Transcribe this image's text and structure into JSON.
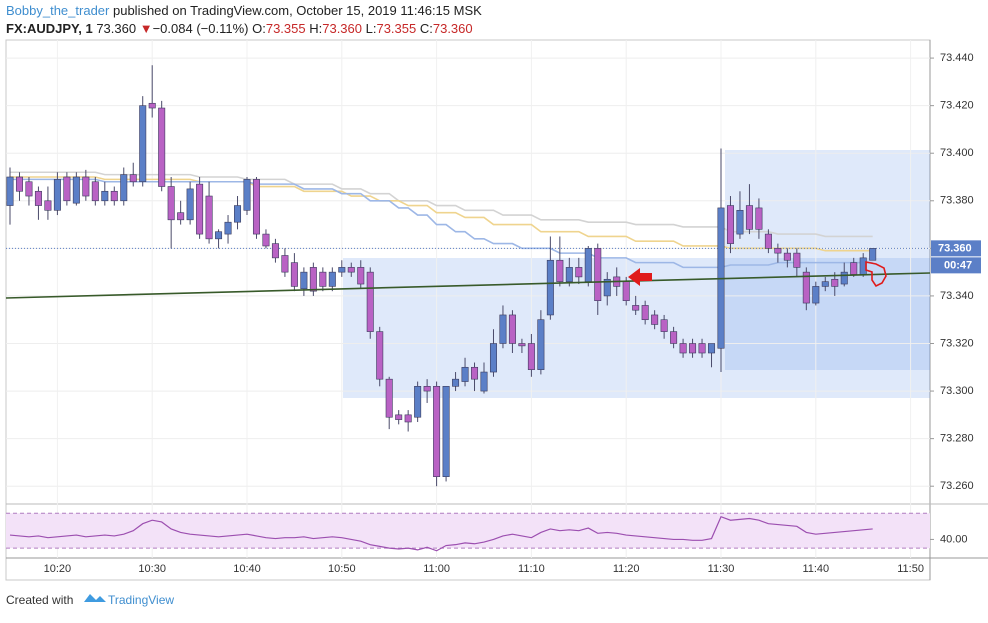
{
  "header": {
    "author": "Bobby_the_trader",
    "published": "published on TradingView.com, October 15, 2019 11:46:15 MSK",
    "symbol": "FX:AUDJPY, 1",
    "price": "73.360",
    "arrow": "▼",
    "change": "−0.084 (−0.11%)",
    "ohlc": [
      {
        "key": "O:",
        "value": "73.355"
      },
      {
        "key": "H:",
        "value": "73.360"
      },
      {
        "key": "L:",
        "value": "73.355"
      },
      {
        "key": "C:",
        "value": "73.360"
      }
    ]
  },
  "chart_data": [
    {
      "type": "candlestick",
      "up_color": "#5b7fc7",
      "down_color": "#b962c4",
      "wick_color": "#4a4a6a",
      "categories": [
        null,
        null,
        null,
        null,
        null,
        "10:20",
        null,
        null,
        null,
        null,
        null,
        null,
        null,
        null,
        null,
        "10:30",
        null,
        null,
        null,
        null,
        null,
        null,
        null,
        null,
        null,
        "10:40",
        null,
        null,
        null,
        null,
        null,
        null,
        null,
        null,
        null,
        "10:50",
        null,
        null,
        null,
        null,
        null,
        null,
        null,
        null,
        null,
        "11:00",
        null,
        null,
        null,
        null,
        null,
        null,
        null,
        null,
        null,
        "11:10",
        null,
        null,
        null,
        null,
        null,
        null,
        null,
        null,
        null,
        "11:20",
        null,
        null,
        null,
        null,
        null,
        null,
        null,
        null,
        null,
        "11:30",
        null,
        null,
        null,
        null,
        null,
        null,
        null,
        null,
        null,
        "11:40",
        null,
        null,
        null,
        null,
        null,
        null,
        null,
        null,
        null,
        "11:50"
      ],
      "open": [
        73.378,
        73.39,
        73.388,
        73.384,
        73.38,
        73.376,
        73.39,
        73.379,
        73.39,
        73.388,
        73.38,
        73.384,
        73.38,
        73.391,
        73.388,
        73.421,
        73.419,
        73.386,
        73.375,
        73.372,
        73.387,
        73.382,
        73.364,
        73.366,
        73.371,
        73.376,
        73.389,
        73.366,
        73.362,
        73.357,
        73.354,
        73.343,
        73.352,
        73.35,
        73.344,
        73.35,
        73.352,
        73.352,
        73.35,
        73.325,
        73.305,
        73.29,
        73.29,
        73.289,
        73.302,
        73.302,
        73.264,
        73.302,
        73.304,
        73.31,
        73.3,
        73.308,
        73.32,
        73.332,
        73.32,
        73.32,
        73.309,
        73.332,
        73.355,
        73.346,
        73.352,
        73.346,
        73.36,
        73.34,
        73.348,
        73.346,
        73.336,
        73.336,
        73.332,
        73.33,
        73.325,
        73.32,
        73.32,
        73.32,
        73.316,
        73.318,
        73.378,
        73.366,
        73.378,
        73.377,
        73.366,
        73.36,
        73.358,
        73.358,
        73.35,
        73.337,
        73.344,
        73.347,
        73.345,
        73.354,
        73.349,
        73.355,
        null,
        null,
        null,
        null
      ],
      "high": [
        73.394,
        73.392,
        73.39,
        73.386,
        73.386,
        73.392,
        73.392,
        73.392,
        73.393,
        73.39,
        73.388,
        73.386,
        73.394,
        73.396,
        73.424,
        73.437,
        73.422,
        73.39,
        73.38,
        73.388,
        73.39,
        73.388,
        73.368,
        73.374,
        73.382,
        73.39,
        73.39,
        73.368,
        73.364,
        73.36,
        73.358,
        73.352,
        73.354,
        73.352,
        73.352,
        73.355,
        73.354,
        73.355,
        73.352,
        73.327,
        73.306,
        73.292,
        73.292,
        73.304,
        73.305,
        73.304,
        73.302,
        73.308,
        73.314,
        73.312,
        73.312,
        73.326,
        73.336,
        73.334,
        73.322,
        73.324,
        73.334,
        73.365,
        73.365,
        73.356,
        73.356,
        73.361,
        73.362,
        73.35,
        73.352,
        73.348,
        73.34,
        73.338,
        73.334,
        73.332,
        73.327,
        73.322,
        73.322,
        73.322,
        73.32,
        73.402,
        73.382,
        73.384,
        73.387,
        73.381,
        73.368,
        73.362,
        73.36,
        73.36,
        73.352,
        73.346,
        73.348,
        73.35,
        73.354,
        73.356,
        73.358,
        73.36,
        null,
        null,
        null,
        null
      ],
      "low": [
        73.37,
        73.38,
        73.378,
        73.372,
        73.372,
        73.374,
        73.378,
        73.378,
        73.38,
        73.378,
        73.378,
        73.378,
        73.378,
        73.386,
        73.386,
        73.415,
        73.384,
        73.36,
        73.37,
        73.37,
        73.364,
        73.362,
        73.36,
        73.362,
        73.368,
        73.374,
        73.364,
        73.36,
        73.354,
        73.348,
        73.342,
        73.34,
        73.34,
        73.342,
        73.342,
        73.348,
        73.348,
        73.343,
        73.322,
        73.302,
        73.284,
        73.286,
        73.283,
        73.287,
        73.295,
        73.26,
        73.262,
        73.3,
        73.302,
        73.3,
        73.299,
        73.306,
        73.318,
        73.316,
        73.316,
        73.306,
        73.307,
        73.33,
        73.344,
        73.344,
        73.345,
        73.344,
        73.332,
        73.336,
        73.34,
        73.336,
        73.332,
        73.328,
        73.326,
        73.322,
        73.318,
        73.314,
        73.314,
        73.314,
        73.31,
        73.308,
        73.358,
        73.364,
        73.366,
        73.364,
        73.358,
        73.354,
        73.352,
        73.348,
        73.334,
        73.336,
        73.342,
        73.34,
        73.344,
        73.348,
        73.348,
        73.355,
        null,
        null,
        null,
        null
      ],
      "close": [
        73.39,
        73.384,
        73.382,
        73.378,
        73.376,
        73.389,
        73.38,
        73.39,
        73.382,
        73.38,
        73.384,
        73.38,
        73.391,
        73.388,
        73.42,
        73.419,
        73.386,
        73.372,
        73.372,
        73.385,
        73.366,
        73.364,
        73.367,
        73.371,
        73.378,
        73.389,
        73.366,
        73.361,
        73.356,
        73.35,
        73.344,
        73.35,
        73.342,
        73.344,
        73.35,
        73.352,
        73.35,
        73.345,
        73.325,
        73.305,
        73.289,
        73.288,
        73.287,
        73.302,
        73.3,
        73.264,
        73.302,
        73.305,
        73.31,
        73.305,
        73.308,
        73.32,
        73.332,
        73.32,
        73.319,
        73.309,
        73.33,
        73.355,
        73.346,
        73.352,
        73.348,
        73.36,
        73.338,
        73.347,
        73.344,
        73.338,
        73.334,
        73.33,
        73.328,
        73.325,
        73.32,
        73.316,
        73.316,
        73.316,
        73.32,
        73.377,
        73.362,
        73.376,
        73.368,
        73.368,
        73.36,
        73.358,
        73.355,
        73.352,
        73.337,
        73.344,
        73.346,
        73.344,
        73.35,
        73.349,
        73.356,
        73.36,
        null,
        null,
        null,
        null
      ],
      "series": [
        {
          "color": "#d3d3d3",
          "values": [
            73.392,
            73.392,
            73.392,
            73.392,
            73.392,
            73.392,
            73.392,
            73.392,
            73.392,
            73.392,
            73.391,
            73.391,
            73.391,
            73.391,
            73.391,
            73.391,
            73.391,
            73.391,
            73.391,
            73.391,
            73.39,
            73.39,
            73.39,
            73.39,
            73.39,
            73.389,
            73.389,
            73.389,
            73.389,
            73.389,
            73.387,
            73.387,
            73.387,
            73.387,
            73.387,
            73.385,
            73.385,
            73.385,
            73.383,
            73.383,
            73.383,
            73.38,
            73.38,
            73.38,
            73.38,
            73.378,
            73.378,
            73.378,
            73.376,
            73.376,
            73.376,
            73.376,
            73.374,
            73.374,
            73.374,
            73.374,
            73.372,
            73.372,
            73.372,
            73.372,
            73.372,
            73.371,
            73.371,
            73.371,
            73.371,
            73.371,
            73.37,
            73.37,
            73.37,
            73.37,
            73.37,
            73.369,
            73.369,
            73.369,
            73.369,
            73.369,
            73.367,
            73.367,
            73.367,
            73.367,
            73.367,
            73.366,
            73.366,
            73.366,
            73.366,
            73.366,
            73.365,
            73.365,
            73.365,
            73.365,
            73.365,
            73.365,
            null,
            null,
            null,
            null
          ]
        },
        {
          "color": "#efd48e",
          "values": [
            73.39,
            73.39,
            73.39,
            73.39,
            73.39,
            73.39,
            73.39,
            73.39,
            73.39,
            73.39,
            73.389,
            73.389,
            73.389,
            73.389,
            73.389,
            73.389,
            73.389,
            73.389,
            73.389,
            73.389,
            73.388,
            73.388,
            73.388,
            73.388,
            73.388,
            73.388,
            73.386,
            73.386,
            73.386,
            73.386,
            73.386,
            73.384,
            73.384,
            73.384,
            73.384,
            73.384,
            73.382,
            73.382,
            73.382,
            73.38,
            73.38,
            73.38,
            73.378,
            73.378,
            73.378,
            73.375,
            73.375,
            73.375,
            73.373,
            73.373,
            73.373,
            73.37,
            73.37,
            73.37,
            73.37,
            73.37,
            73.367,
            73.367,
            73.367,
            73.367,
            73.367,
            73.365,
            73.365,
            73.365,
            73.365,
            73.365,
            73.363,
            73.363,
            73.363,
            73.363,
            73.363,
            73.361,
            73.361,
            73.361,
            73.361,
            73.361,
            73.36,
            73.36,
            73.36,
            73.36,
            73.36,
            73.36,
            73.36,
            73.36,
            73.36,
            73.36,
            73.359,
            73.359,
            73.359,
            73.359,
            73.359,
            73.359,
            null,
            null,
            null,
            null
          ]
        },
        {
          "color": "#9db7e6",
          "values": [
            73.389,
            73.389,
            73.389,
            73.389,
            73.389,
            73.389,
            73.389,
            73.389,
            73.389,
            73.389,
            73.388,
            73.388,
            73.388,
            73.388,
            73.388,
            73.388,
            73.388,
            73.388,
            73.388,
            73.388,
            73.388,
            73.388,
            73.388,
            73.388,
            73.388,
            73.388,
            73.387,
            73.387,
            73.387,
            73.387,
            73.387,
            73.385,
            73.385,
            73.385,
            73.385,
            73.383,
            73.383,
            73.383,
            73.38,
            73.38,
            73.38,
            73.377,
            73.377,
            73.374,
            73.374,
            73.37,
            73.37,
            73.367,
            73.367,
            73.364,
            73.364,
            73.362,
            73.362,
            73.362,
            73.36,
            73.36,
            73.36,
            73.36,
            73.358,
            73.358,
            73.358,
            73.358,
            73.356,
            73.356,
            73.356,
            73.356,
            73.354,
            73.354,
            73.354,
            73.354,
            73.354,
            73.352,
            73.352,
            73.352,
            73.352,
            73.352,
            73.353,
            73.353,
            73.353,
            73.353,
            73.353,
            73.354,
            73.354,
            73.354,
            73.354,
            73.354,
            73.354,
            73.354,
            73.354,
            73.354,
            73.354,
            73.354,
            null,
            null,
            null,
            null
          ]
        }
      ],
      "ylim": [
        73.2542,
        73.4476
      ],
      "yticks": [
        {
          "value": 73.26,
          "label": "73.260"
        },
        {
          "value": 73.28,
          "label": "73.280"
        },
        {
          "value": 73.3,
          "label": "73.300"
        },
        {
          "value": 73.32,
          "label": "73.320"
        },
        {
          "value": 73.34,
          "label": "73.340"
        },
        {
          "value": 73.36,
          "label": "73.360"
        },
        {
          "value": 73.38,
          "label": "73.380"
        },
        {
          "value": 73.4,
          "label": "73.400"
        },
        {
          "value": 73.42,
          "label": "73.420"
        },
        {
          "value": 73.44,
          "label": "73.440"
        }
      ],
      "last_price": {
        "value": 73.36,
        "label": "73.360"
      },
      "countdown": "00:47"
    },
    {
      "type": "line",
      "color": "#9c4fb0",
      "band": [
        30,
        70
      ],
      "band_color": "#f3e2f8",
      "ylim": [
        21,
        76
      ],
      "yticks": [
        {
          "value": 40,
          "label": "40.00"
        }
      ],
      "values": [
        45,
        44,
        43,
        44,
        42,
        43,
        44,
        45,
        43,
        44,
        45,
        44,
        46,
        50,
        58,
        62,
        60,
        52,
        48,
        46,
        45,
        44,
        43,
        44,
        45,
        46,
        44,
        42,
        41,
        42,
        42,
        43,
        41,
        42,
        43,
        42,
        40,
        38,
        34,
        32,
        30,
        29,
        30,
        28,
        31,
        27,
        33,
        34,
        36,
        35,
        37,
        40,
        44,
        46,
        44,
        42,
        48,
        52,
        50,
        51,
        50,
        53,
        47,
        48,
        47,
        45,
        44,
        43,
        42,
        41,
        40,
        40,
        39,
        39,
        41,
        66,
        62,
        63,
        64,
        62,
        58,
        57,
        56,
        55,
        48,
        46,
        47,
        48,
        49,
        50,
        51,
        52,
        null,
        null,
        null,
        null
      ]
    }
  ],
  "footer": {
    "created": "Created with",
    "brand": "TradingView"
  }
}
